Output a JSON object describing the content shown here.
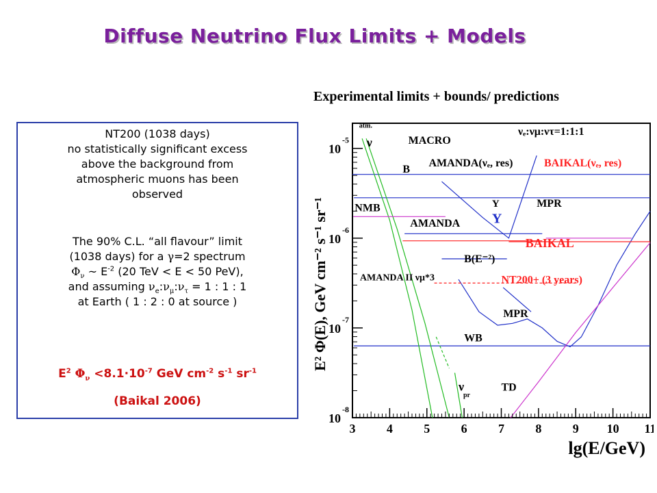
{
  "slide": {
    "title": "Diffuse Neutrino Flux Limits + Models",
    "subtitle": "Experimental limits + bounds/ predictions"
  },
  "info_box": {
    "para1_lines": [
      "NT200 (1038 days)",
      "no statistically significant excess",
      "above the background from",
      "atmospheric muons has been",
      "observed"
    ],
    "para2_line1": "The 90% C.L. “all flavour” limit",
    "para2_line2_pre": "(1038 days) for a ",
    "para2_line2_sym": "γ",
    "para2_line2_post": "=2 spectrum",
    "para2_line3_phi": "Φ",
    "para2_line3_nu": "ν",
    "para2_line3_mid": " ~ E",
    "para2_line3_exp": "-2",
    "para2_line3_post": "  (20 TeV < E < 50 PeV),",
    "para2_line4_pre": "and assuming ",
    "para2_line4_nu": "ν",
    "para2_line4_e": "e",
    "para2_line4_mu": "μ",
    "para2_line4_tau": "τ",
    "para2_line4_post": " = 1 : 1 : 1",
    "para2_line5": "at Earth  ( 1 : 2 : 0 at source )",
    "formula_E": "E",
    "formula_2": "2",
    "formula_phi": "Φ",
    "formula_nu": "ν",
    "formula_val": " <8.1·10",
    "formula_val_exp": "-7",
    "formula_unit": " GeV cm",
    "formula_cm_exp": "-2",
    "formula_s": " s",
    "formula_s_exp": "-1",
    "formula_sr": " sr",
    "formula_sr_exp": "-1",
    "citation": "(Baikal 2006)"
  },
  "chart_data": {
    "type": "line",
    "xlabel": "lg(E/GeV)",
    "ylabel": "E² Φ(E), GeV cm⁻² s⁻¹ sr⁻¹",
    "xlim": [
      3,
      11
    ],
    "ylim": [
      -8,
      -4.72
    ],
    "x_ticks": [
      "3",
      "4",
      "5",
      "6",
      "7",
      "8",
      "9",
      "10",
      "11"
    ],
    "y_ticks": [
      {
        "base": "10",
        "exp": "-5",
        "value": -5
      },
      {
        "base": "10",
        "exp": "-6",
        "value": -6
      },
      {
        "base": "10",
        "exp": "-7",
        "value": -7
      },
      {
        "base": "10",
        "exp": "-8",
        "value": -8
      }
    ],
    "colors": {
      "blue": "#1f2fc8",
      "green": "#22bb22",
      "red": "#ff2020",
      "magenta": "#cc33cc",
      "black": "#000000"
    },
    "series": [
      {
        "color": "blue",
        "points": [
          [
            3,
            -5.29
          ],
          [
            11,
            -5.29
          ]
        ]
      },
      {
        "color": "blue",
        "points": [
          [
            3.04,
            -5.55
          ],
          [
            11,
            -5.55
          ]
        ]
      },
      {
        "color": "blue",
        "points": [
          [
            3.04,
            -7.2
          ],
          [
            11,
            -7.2
          ]
        ]
      },
      {
        "color": "blue",
        "points": [
          [
            5.4,
            -5.37
          ],
          [
            6.5,
            -5.77
          ],
          [
            7.2,
            -6.0
          ],
          [
            7.95,
            -5.08
          ]
        ]
      },
      {
        "color": "blue",
        "points": [
          [
            5.4,
            -6.23
          ],
          [
            7.15,
            -6.23
          ]
        ]
      },
      {
        "color": "blue",
        "points": [
          [
            4.4,
            -5.95
          ],
          [
            8.1,
            -5.95
          ]
        ]
      },
      {
        "color": "blue",
        "points": [
          [
            5.85,
            -6.46
          ],
          [
            6.4,
            -6.82
          ],
          [
            6.9,
            -6.97
          ],
          [
            7.3,
            -6.95
          ],
          [
            7.7,
            -6.9
          ],
          [
            8.1,
            -7.0
          ],
          [
            8.5,
            -7.15
          ],
          [
            8.85,
            -7.21
          ],
          [
            9.15,
            -7.1
          ],
          [
            9.6,
            -6.75
          ],
          [
            10.1,
            -6.3
          ],
          [
            10.6,
            -5.95
          ],
          [
            11,
            -5.7
          ]
        ]
      },
      {
        "color": "blue",
        "points": [
          [
            7.05,
            -6.55
          ],
          [
            7.8,
            -6.82
          ]
        ]
      },
      {
        "color": "green",
        "points": [
          [
            3.26,
            -4.89
          ],
          [
            4.0,
            -5.8
          ],
          [
            4.6,
            -6.8
          ],
          [
            5.15,
            -8.0
          ]
        ]
      },
      {
        "color": "green",
        "points": [
          [
            3.37,
            -4.89
          ],
          [
            4.2,
            -5.9
          ],
          [
            4.95,
            -6.95
          ],
          [
            5.6,
            -8.0
          ]
        ]
      },
      {
        "color": "green",
        "points": [
          [
            5.25,
            -7.1
          ],
          [
            5.6,
            -7.45
          ]
        ],
        "dashed": true
      },
      {
        "color": "green",
        "points": [
          [
            5.75,
            -7.5
          ],
          [
            5.95,
            -8.0
          ]
        ]
      },
      {
        "color": "red",
        "points": [
          [
            4.35,
            -6.03
          ],
          [
            8.1,
            -6.03
          ]
        ]
      },
      {
        "color": "red",
        "points": [
          [
            7.2,
            -6.04
          ],
          [
            11,
            -6.04
          ]
        ]
      },
      {
        "color": "red",
        "points": [
          [
            5.2,
            -6.5
          ],
          [
            9.0,
            -6.5
          ]
        ],
        "dashed": true
      },
      {
        "color": "magenta",
        "points": [
          [
            3.02,
            -5.76
          ],
          [
            5.5,
            -5.76
          ]
        ]
      },
      {
        "color": "magenta",
        "points": [
          [
            8.2,
            -6.0
          ],
          [
            10.5,
            -6.0
          ]
        ]
      },
      {
        "color": "magenta",
        "points": [
          [
            7.25,
            -8.0
          ],
          [
            8.0,
            -7.6
          ],
          [
            9.0,
            -7.05
          ],
          [
            10.0,
            -6.55
          ],
          [
            11,
            -6.05
          ]
        ]
      }
    ],
    "labels": [
      {
        "text": "atm.",
        "x": 3.18,
        "y": -4.77,
        "size": 10,
        "color": "black"
      },
      {
        "text": "ν",
        "x": 3.38,
        "y": -4.98,
        "size": 18,
        "color": "black"
      },
      {
        "text": "MACRO",
        "x": 4.5,
        "y": -4.95,
        "size": 16,
        "color": "black"
      },
      {
        "text": "B",
        "x": 4.35,
        "y": -5.27,
        "size": 16,
        "color": "black"
      },
      {
        "text": "AMANDA(νₑ, res)",
        "x": 5.05,
        "y": -5.2,
        "size": 16,
        "color": "black"
      },
      {
        "text": "BAIKAL(νₑ, res)",
        "x": 8.15,
        "y": -5.2,
        "size": 16,
        "color": "red"
      },
      {
        "text": "νₑ:νμ:ντ=1:1:1",
        "x": 7.45,
        "y": -4.85,
        "size": 16,
        "color": "black"
      },
      {
        "text": "NMB",
        "x": 3.06,
        "y": -5.7,
        "size": 16,
        "color": "black"
      },
      {
        "text": "Y",
        "x": 6.75,
        "y": -5.65,
        "size": 15,
        "color": "black"
      },
      {
        "text": "MPR",
        "x": 7.95,
        "y": -5.65,
        "size": 16,
        "color": "black"
      },
      {
        "text": "Y",
        "x": 6.75,
        "y": -5.83,
        "size": 20,
        "color": "blue"
      },
      {
        "text": "AMANDA",
        "x": 4.55,
        "y": -5.87,
        "size": 16,
        "color": "black"
      },
      {
        "text": "BAIKAL",
        "x": 7.65,
        "y": -6.1,
        "size": 18,
        "color": "red"
      },
      {
        "text": "B(E⁻²)",
        "x": 6.0,
        "y": -6.27,
        "size": 16,
        "color": "black"
      },
      {
        "text": "AMANDA II νμ*3",
        "x": 3.2,
        "y": -6.47,
        "size": 14,
        "color": "black"
      },
      {
        "text": "NT200+ (3 years)",
        "x": 7.0,
        "y": -6.5,
        "size": 16,
        "color": "red"
      },
      {
        "text": "MPR",
        "x": 7.05,
        "y": -6.88,
        "size": 16,
        "color": "black"
      },
      {
        "text": "WB",
        "x": 6.0,
        "y": -7.15,
        "size": 16,
        "color": "black"
      },
      {
        "text": "ν",
        "x": 5.85,
        "y": -7.7,
        "size": 18,
        "color": "black"
      },
      {
        "text": "pr",
        "x": 5.98,
        "y": -7.77,
        "size": 10,
        "color": "black"
      },
      {
        "text": "TD",
        "x": 7.0,
        "y": -7.7,
        "size": 16,
        "color": "black"
      }
    ]
  }
}
